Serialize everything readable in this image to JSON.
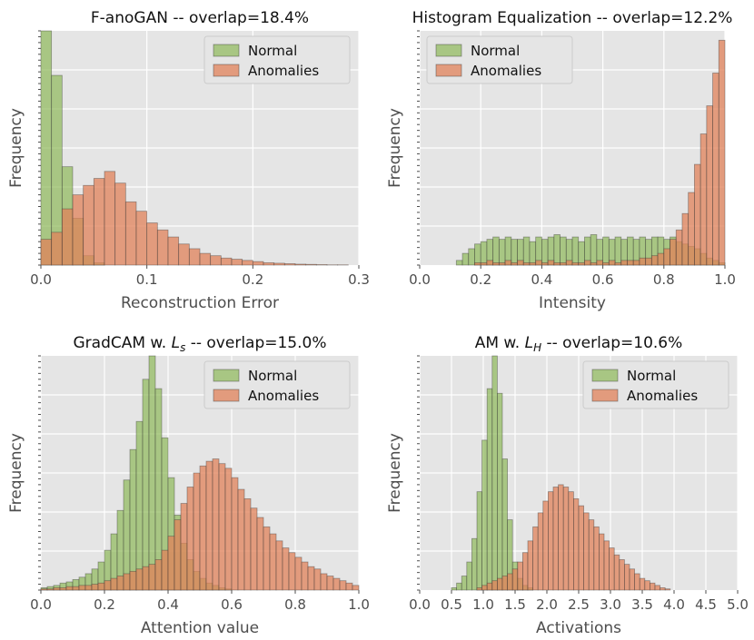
{
  "chart_data": [
    {
      "type": "bar",
      "title": "F-anoGAN  --  overlap=18.4%",
      "xlabel": "Reconstruction Error",
      "ylabel": "Frequency",
      "xlim": [
        0.0,
        0.3
      ],
      "xticks": [
        "0.0",
        "0.1",
        "0.2",
        "0.3"
      ],
      "xtick_values": [
        0.0,
        0.1,
        0.2,
        0.3
      ],
      "ylim": [
        0,
        1
      ],
      "legend": "top-right",
      "bin_start": 0.0,
      "bin_width": 0.01,
      "series": [
        {
          "name": "Normal",
          "color": "#8fb95a",
          "values": [
            1.0,
            0.81,
            0.42,
            0.2,
            0.04,
            0.01,
            0,
            0,
            0,
            0,
            0,
            0,
            0,
            0,
            0,
            0,
            0,
            0,
            0,
            0,
            0,
            0,
            0,
            0,
            0,
            0,
            0,
            0,
            0,
            0
          ]
        },
        {
          "name": "Anomalies",
          "color": "#e0825a",
          "values": [
            0.11,
            0.14,
            0.24,
            0.3,
            0.34,
            0.37,
            0.4,
            0.35,
            0.27,
            0.23,
            0.18,
            0.15,
            0.12,
            0.09,
            0.07,
            0.05,
            0.04,
            0.03,
            0.025,
            0.02,
            0.015,
            0.01,
            0.008,
            0.006,
            0.004,
            0.003,
            0.002,
            0.001,
            0.001,
            0.0
          ]
        }
      ]
    },
    {
      "type": "bar",
      "title": "Histogram Equalization  --  overlap=12.2%",
      "xlabel": "Intensity",
      "ylabel": "Frequency",
      "xlim": [
        0.0,
        1.0
      ],
      "xticks": [
        "0.0",
        "0.2",
        "0.4",
        "0.6",
        "0.8",
        "1.0"
      ],
      "xtick_values": [
        0.0,
        0.2,
        0.4,
        0.6,
        0.8,
        1.0
      ],
      "ylim": [
        0,
        1
      ],
      "legend": "top-left",
      "bin_start": 0.12,
      "bin_width": 0.02,
      "series": [
        {
          "name": "Normal",
          "color": "#8fb95a",
          "values": [
            0.02,
            0.05,
            0.07,
            0.09,
            0.1,
            0.11,
            0.12,
            0.11,
            0.12,
            0.11,
            0.11,
            0.12,
            0.1,
            0.12,
            0.11,
            0.12,
            0.13,
            0.12,
            0.11,
            0.12,
            0.1,
            0.12,
            0.13,
            0.11,
            0.12,
            0.11,
            0.12,
            0.11,
            0.12,
            0.11,
            0.12,
            0.11,
            0.12,
            0.12,
            0.11,
            0.12,
            0.1,
            0.09,
            0.08,
            0.07,
            0.05,
            0.03,
            0.02,
            0.01
          ]
        },
        {
          "name": "Anomalies",
          "color": "#e0825a",
          "values": [
            0,
            0,
            0,
            0.01,
            0.01,
            0.02,
            0.01,
            0.01,
            0.02,
            0.01,
            0.02,
            0.01,
            0.01,
            0.02,
            0.01,
            0.02,
            0.01,
            0.01,
            0.02,
            0.01,
            0.01,
            0.02,
            0.01,
            0.02,
            0.01,
            0.02,
            0.01,
            0.02,
            0.02,
            0.02,
            0.03,
            0.03,
            0.04,
            0.05,
            0.07,
            0.11,
            0.15,
            0.22,
            0.31,
            0.43,
            0.56,
            0.68,
            0.82,
            0.96
          ]
        }
      ]
    },
    {
      "type": "bar",
      "title": "GradCAM w. Ls  --  overlap=15.0%",
      "title_parts": [
        "GradCAM w. ",
        "L",
        "s",
        "  --  overlap=15.0%"
      ],
      "xlabel": "Attention value",
      "ylabel": "Frequency",
      "xlim": [
        0.0,
        1.0
      ],
      "xticks": [
        "0.0",
        "0.2",
        "0.4",
        "0.6",
        "0.8",
        "1.0"
      ],
      "xtick_values": [
        0.0,
        0.2,
        0.4,
        0.6,
        0.8,
        1.0
      ],
      "ylim": [
        0,
        1
      ],
      "legend": "top-right",
      "bin_start": 0.0,
      "bin_width": 0.02,
      "series": [
        {
          "name": "Normal",
          "color": "#8fb95a",
          "values": [
            0.01,
            0.015,
            0.02,
            0.03,
            0.035,
            0.045,
            0.055,
            0.07,
            0.09,
            0.12,
            0.17,
            0.24,
            0.34,
            0.47,
            0.6,
            0.72,
            0.9,
            1.0,
            0.86,
            0.65,
            0.48,
            0.32,
            0.2,
            0.13,
            0.08,
            0.05,
            0.03,
            0.02,
            0.01,
            0.005,
            0,
            0,
            0,
            0,
            0,
            0,
            0,
            0,
            0,
            0,
            0,
            0,
            0,
            0,
            0,
            0,
            0,
            0,
            0,
            0
          ]
        },
        {
          "name": "Anomalies",
          "color": "#e0825a",
          "values": [
            0.005,
            0.005,
            0.01,
            0.01,
            0.015,
            0.015,
            0.02,
            0.02,
            0.025,
            0.03,
            0.04,
            0.05,
            0.06,
            0.07,
            0.08,
            0.09,
            0.1,
            0.11,
            0.13,
            0.17,
            0.23,
            0.3,
            0.37,
            0.44,
            0.5,
            0.53,
            0.55,
            0.56,
            0.54,
            0.52,
            0.48,
            0.43,
            0.39,
            0.35,
            0.31,
            0.27,
            0.24,
            0.21,
            0.18,
            0.16,
            0.14,
            0.12,
            0.1,
            0.09,
            0.07,
            0.06,
            0.05,
            0.04,
            0.03,
            0.02
          ]
        }
      ]
    },
    {
      "type": "bar",
      "title": "AM w. LH  --  overlap=10.6%",
      "title_parts": [
        "AM w. ",
        "L",
        "H",
        "  --  overlap=10.6%"
      ],
      "xlabel": "Activations",
      "ylabel": "Frequency",
      "xlim": [
        0.0,
        5.0
      ],
      "xticks": [
        "0.0",
        "0.5",
        "1.0",
        "1.5",
        "2.0",
        "2.5",
        "3.0",
        "3.5",
        "4.0",
        "4.5",
        "5.0"
      ],
      "xtick_values": [
        0.0,
        0.5,
        1.0,
        1.5,
        2.0,
        2.5,
        3.0,
        3.5,
        4.0,
        4.5,
        5.0
      ],
      "ylim": [
        0,
        1
      ],
      "legend": "top-right",
      "bin_start": 0.5,
      "bin_width": 0.08,
      "series": [
        {
          "name": "Normal",
          "color": "#8fb95a",
          "values": [
            0.01,
            0.03,
            0.06,
            0.12,
            0.22,
            0.42,
            0.64,
            0.86,
            1.0,
            0.84,
            0.56,
            0.3,
            0.12,
            0.05,
            0.02,
            0.01,
            0,
            0,
            0,
            0,
            0,
            0,
            0,
            0,
            0,
            0,
            0,
            0,
            0,
            0,
            0,
            0,
            0,
            0,
            0,
            0,
            0,
            0,
            0,
            0,
            0,
            0,
            0,
            0
          ]
        },
        {
          "name": "Anomalies",
          "color": "#e0825a",
          "values": [
            0,
            0,
            0,
            0,
            0,
            0.01,
            0.02,
            0.03,
            0.04,
            0.05,
            0.06,
            0.07,
            0.09,
            0.12,
            0.16,
            0.21,
            0.27,
            0.33,
            0.38,
            0.42,
            0.44,
            0.45,
            0.44,
            0.42,
            0.39,
            0.36,
            0.33,
            0.3,
            0.27,
            0.24,
            0.21,
            0.18,
            0.15,
            0.13,
            0.11,
            0.09,
            0.07,
            0.05,
            0.04,
            0.03,
            0.02,
            0.01,
            0.005,
            0.0
          ]
        }
      ]
    }
  ]
}
